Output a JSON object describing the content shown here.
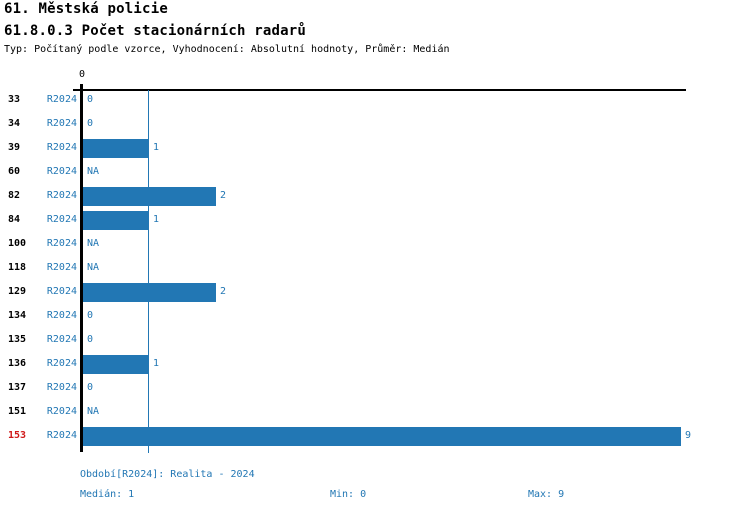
{
  "header": {
    "title": "61. Městská policie",
    "subtitle": "61.8.0.3 Počet stacionárních radarů",
    "meta": "Typ: Počítaný podle vzorce, Vyhodnocení: Absolutní hodnoty, Průměr: Medián"
  },
  "chart_data": {
    "type": "bar",
    "orientation": "horizontal",
    "title": "61.8.0.3 Počet stacionárních radarů",
    "series_label": "R2024",
    "categories": [
      "33",
      "34",
      "39",
      "60",
      "82",
      "84",
      "100",
      "118",
      "129",
      "134",
      "135",
      "136",
      "137",
      "151",
      "153"
    ],
    "values": [
      0,
      0,
      1,
      null,
      2,
      1,
      null,
      null,
      2,
      0,
      0,
      1,
      0,
      null,
      9
    ],
    "value_labels": [
      "0",
      "0",
      "1",
      "NA",
      "2",
      "1",
      "NA",
      "NA",
      "2",
      "0",
      "0",
      "1",
      "0",
      "NA",
      "9"
    ],
    "highlighted_category": "153",
    "axis": {
      "tick_label": "0",
      "xlim": [
        0,
        9
      ],
      "median_line_value": 1,
      "grid": false
    },
    "legend_position": "bottom",
    "colors": {
      "bar": "#2277b4",
      "text_blue": "#2277b4",
      "highlight_red": "#d01818",
      "axis_black": "#000000"
    }
  },
  "footer": {
    "period": "Období[R2024]: Realita - 2024",
    "median": "Medián: 1",
    "min": "Min: 0",
    "max": "Max: 9"
  }
}
